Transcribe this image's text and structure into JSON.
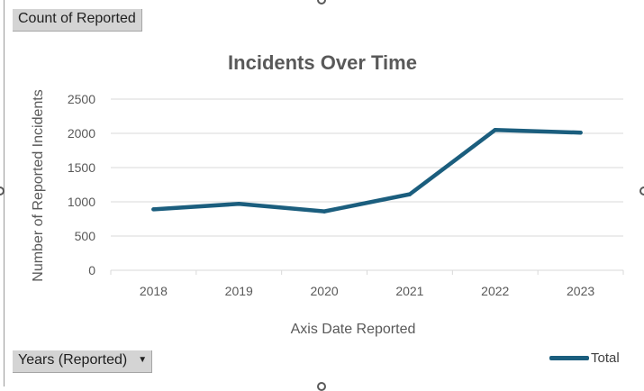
{
  "filters": {
    "value_field": "Count of Reported",
    "axis_field": "Years (Reported)"
  },
  "colors": {
    "line": "#1b5e7e",
    "grid": "#d9d9d9",
    "text": "#595959",
    "title": "#595959"
  },
  "chart_data": {
    "type": "line",
    "title": "Incidents Over Time",
    "xlabel": "Axis Date Reported",
    "ylabel": "Number of Reported Incidents",
    "categories": [
      "2018",
      "2019",
      "2020",
      "2021",
      "2022",
      "2023"
    ],
    "series": [
      {
        "name": "Total",
        "values": [
          890,
          970,
          860,
          1110,
          2050,
          2010
        ]
      }
    ],
    "ylim": [
      0,
      2500
    ],
    "yticks": [
      0,
      500,
      1000,
      1500,
      2000,
      2500
    ],
    "grid": true,
    "legend_position": "bottom-right"
  }
}
